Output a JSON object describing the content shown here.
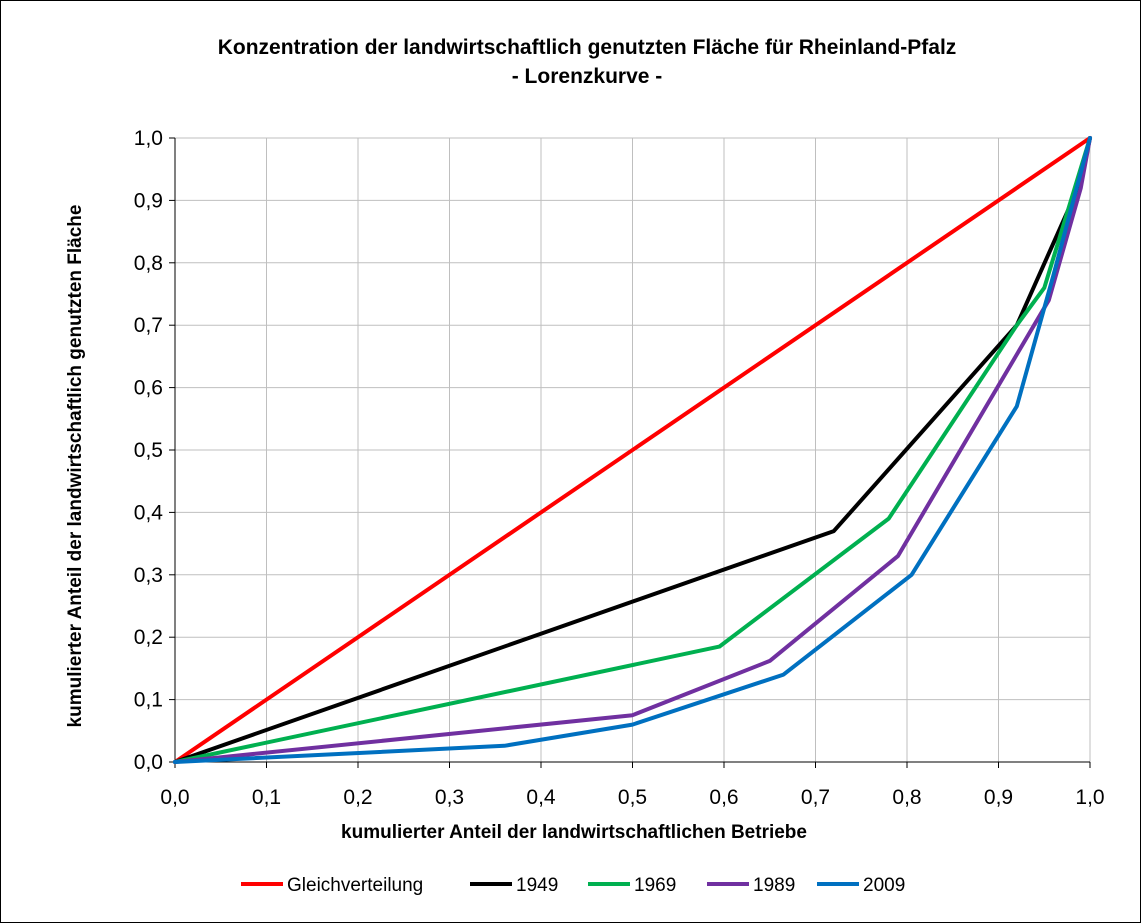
{
  "chart_data": {
    "type": "line",
    "title": "Konzentration der landwirtschaftlich genutzten Fläche für Rheinland-Pfalz",
    "subtitle": "- Lorenzkurve -",
    "xlabel": "kumulierter Anteil der landwirtschaftlichen Betriebe",
    "ylabel": "kumulierter Anteil der landwirtschaftlich genutzten Fläche",
    "xlim": [
      0,
      1
    ],
    "ylim": [
      0,
      1
    ],
    "xticks": [
      "0,0",
      "0,1",
      "0,2",
      "0,3",
      "0,4",
      "0,5",
      "0,6",
      "0,7",
      "0,8",
      "0,9",
      "1,0"
    ],
    "yticks": [
      "0,0",
      "0,1",
      "0,2",
      "0,3",
      "0,4",
      "0,5",
      "0,6",
      "0,7",
      "0,8",
      "0,9",
      "1,0"
    ],
    "grid": true,
    "legend_position": "bottom",
    "series": [
      {
        "name": "Gleichverteilung",
        "color": "#ff0000",
        "points": [
          [
            0,
            0
          ],
          [
            1,
            1
          ]
        ]
      },
      {
        "name": "1949",
        "color": "#000000",
        "points": [
          [
            0,
            0
          ],
          [
            0.72,
            0.37
          ],
          [
            0.92,
            0.7
          ],
          [
            0.99,
            0.93
          ],
          [
            1,
            1
          ]
        ]
      },
      {
        "name": "1969",
        "color": "#00b050",
        "points": [
          [
            0,
            0
          ],
          [
            0.595,
            0.185
          ],
          [
            0.78,
            0.39
          ],
          [
            0.92,
            0.7
          ],
          [
            0.95,
            0.76
          ],
          [
            1,
            1
          ]
        ]
      },
      {
        "name": "1989",
        "color": "#7030a0",
        "points": [
          [
            0,
            0
          ],
          [
            0.5,
            0.075
          ],
          [
            0.65,
            0.162
          ],
          [
            0.79,
            0.33
          ],
          [
            0.955,
            0.74
          ],
          [
            0.99,
            0.92
          ],
          [
            1,
            1
          ]
        ]
      },
      {
        "name": "2009",
        "color": "#0070c0",
        "points": [
          [
            0,
            0
          ],
          [
            0.36,
            0.026
          ],
          [
            0.5,
            0.06
          ],
          [
            0.665,
            0.14
          ],
          [
            0.805,
            0.3
          ],
          [
            0.92,
            0.57
          ],
          [
            0.96,
            0.78
          ],
          [
            1,
            1
          ]
        ]
      }
    ]
  }
}
